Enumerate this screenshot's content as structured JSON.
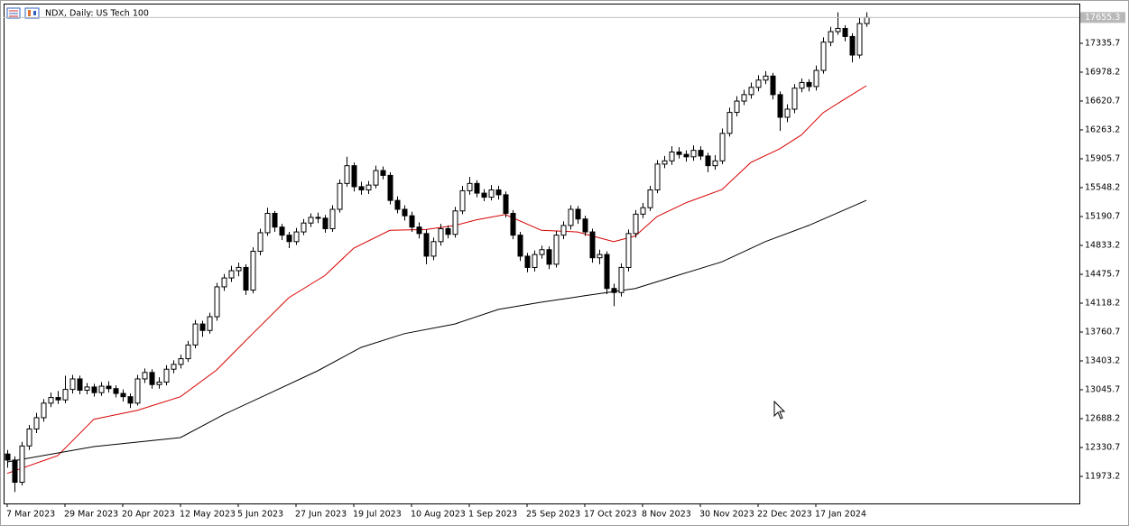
{
  "chart_data": {
    "type": "candlestick",
    "title": "NDX, Daily:  US Tech 100",
    "grid": false,
    "ylim": [
      11638,
      17827
    ],
    "yticks": [
      11973.2,
      12330.7,
      12688.2,
      13045.7,
      13403.2,
      13760.7,
      14118.2,
      14475.7,
      14833.2,
      15190.7,
      15548.2,
      15905.7,
      16263.2,
      16620.7,
      16978.2,
      17335.7
    ],
    "xlim": [
      -0.5,
      148.5
    ],
    "xticks": [
      {
        "value": 0,
        "label": "7 Mar 2023"
      },
      {
        "value": 8,
        "label": "29 Mar 2023"
      },
      {
        "value": 16,
        "label": "20 Apr 2023"
      },
      {
        "value": 24,
        "label": "12 May 2023"
      },
      {
        "value": 32,
        "label": "5 Jun 2023"
      },
      {
        "value": 40,
        "label": "27 Jun 2023"
      },
      {
        "value": 48,
        "label": "19 Jul 2023"
      },
      {
        "value": 56,
        "label": "10 Aug 2023"
      },
      {
        "value": 64,
        "label": "1 Sep 2023"
      },
      {
        "value": 72,
        "label": "25 Sep 2023"
      },
      {
        "value": 80,
        "label": "17 Oct 2023"
      },
      {
        "value": 88,
        "label": "8 Nov 2023"
      },
      {
        "value": 96,
        "label": "30 Nov 2023"
      },
      {
        "value": 104,
        "label": "22 Dec 2023"
      },
      {
        "value": 112,
        "label": "17 Jan 2024"
      }
    ],
    "up_color": "#ffffff",
    "down_color": "#000000",
    "candles": [
      [
        12250,
        12300,
        12080,
        12175
      ],
      [
        12175,
        12220,
        11780,
        11900
      ],
      [
        11900,
        12400,
        11860,
        12350
      ],
      [
        12350,
        12610,
        12300,
        12560
      ],
      [
        12560,
        12760,
        12510,
        12700
      ],
      [
        12700,
        12930,
        12650,
        12880
      ],
      [
        12880,
        13010,
        12830,
        12950
      ],
      [
        12950,
        13030,
        12870,
        12920
      ],
      [
        12920,
        13220,
        12880,
        13050
      ],
      [
        13050,
        13230,
        13000,
        13180
      ],
      [
        13180,
        13220,
        12990,
        13040
      ],
      [
        13040,
        13130,
        12990,
        13080
      ],
      [
        13080,
        13120,
        12960,
        13010
      ],
      [
        13010,
        13140,
        12970,
        13090
      ],
      [
        13090,
        13150,
        13010,
        13060
      ],
      [
        13060,
        13100,
        12950,
        13000
      ],
      [
        13000,
        13050,
        12900,
        12960
      ],
      [
        12960,
        13000,
        12820,
        12880
      ],
      [
        12880,
        13230,
        12850,
        13180
      ],
      [
        13180,
        13310,
        13130,
        13260
      ],
      [
        13260,
        13300,
        13060,
        13110
      ],
      [
        13110,
        13200,
        13060,
        13140
      ],
      [
        13140,
        13350,
        13100,
        13300
      ],
      [
        13300,
        13410,
        13250,
        13360
      ],
      [
        13360,
        13480,
        13310,
        13430
      ],
      [
        13430,
        13650,
        13390,
        13600
      ],
      [
        13600,
        13910,
        13560,
        13860
      ],
      [
        13860,
        13900,
        13700,
        13780
      ],
      [
        13780,
        14000,
        13740,
        13950
      ],
      [
        13950,
        14370,
        13900,
        14320
      ],
      [
        14320,
        14480,
        14270,
        14430
      ],
      [
        14430,
        14580,
        14380,
        14520
      ],
      [
        14520,
        14620,
        14450,
        14560
      ],
      [
        14560,
        14600,
        14220,
        14280
      ],
      [
        14280,
        14810,
        14240,
        14760
      ],
      [
        14760,
        15040,
        14710,
        14990
      ],
      [
        14990,
        15300,
        14950,
        15230
      ],
      [
        15230,
        15260,
        15000,
        15060
      ],
      [
        15060,
        15100,
        14900,
        14960
      ],
      [
        14960,
        15000,
        14800,
        14880
      ],
      [
        14880,
        15050,
        14840,
        15000
      ],
      [
        15000,
        15160,
        14960,
        15110
      ],
      [
        15110,
        15230,
        15060,
        15180
      ],
      [
        15180,
        15240,
        15110,
        15170
      ],
      [
        15170,
        15210,
        14990,
        15040
      ],
      [
        15040,
        15330,
        15000,
        15280
      ],
      [
        15280,
        15650,
        15240,
        15600
      ],
      [
        15600,
        15930,
        15560,
        15820
      ],
      [
        15820,
        15860,
        15500,
        15560
      ],
      [
        15560,
        15620,
        15460,
        15520
      ],
      [
        15520,
        15630,
        15470,
        15580
      ],
      [
        15580,
        15820,
        15540,
        15760
      ],
      [
        15760,
        15810,
        15650,
        15700
      ],
      [
        15700,
        15740,
        15340,
        15390
      ],
      [
        15390,
        15440,
        15230,
        15280
      ],
      [
        15280,
        15330,
        15140,
        15200
      ],
      [
        15200,
        15250,
        15000,
        15060
      ],
      [
        15060,
        15120,
        14920,
        14980
      ],
      [
        14980,
        15030,
        14600,
        14700
      ],
      [
        14700,
        14930,
        14650,
        14880
      ],
      [
        14880,
        15100,
        14830,
        15040
      ],
      [
        15040,
        15080,
        14920,
        14970
      ],
      [
        14970,
        15310,
        14930,
        15260
      ],
      [
        15260,
        15570,
        15220,
        15510
      ],
      [
        15510,
        15680,
        15460,
        15600
      ],
      [
        15600,
        15640,
        15430,
        15480
      ],
      [
        15480,
        15530,
        15380,
        15430
      ],
      [
        15430,
        15580,
        15390,
        15520
      ],
      [
        15520,
        15570,
        15400,
        15460
      ],
      [
        15460,
        15500,
        15180,
        15230
      ],
      [
        15230,
        15270,
        14910,
        14960
      ],
      [
        14960,
        15000,
        14640,
        14700
      ],
      [
        14700,
        14740,
        14500,
        14560
      ],
      [
        14560,
        14770,
        14510,
        14720
      ],
      [
        14720,
        14830,
        14670,
        14780
      ],
      [
        14780,
        14820,
        14540,
        14600
      ],
      [
        14600,
        15010,
        14560,
        14960
      ],
      [
        14960,
        15130,
        14910,
        15080
      ],
      [
        15080,
        15330,
        15030,
        15280
      ],
      [
        15280,
        15320,
        15100,
        15160
      ],
      [
        15160,
        15200,
        14950,
        15000
      ],
      [
        15000,
        15040,
        14620,
        14680
      ],
      [
        14680,
        14780,
        14600,
        14720
      ],
      [
        14720,
        14760,
        14230,
        14300
      ],
      [
        14300,
        14360,
        14080,
        14250
      ],
      [
        14250,
        14610,
        14200,
        14560
      ],
      [
        14560,
        15030,
        14510,
        14980
      ],
      [
        14980,
        15270,
        14930,
        15220
      ],
      [
        15220,
        15360,
        15170,
        15300
      ],
      [
        15300,
        15570,
        15260,
        15520
      ],
      [
        15520,
        15890,
        15480,
        15840
      ],
      [
        15840,
        15940,
        15790,
        15880
      ],
      [
        15880,
        16060,
        15830,
        15990
      ],
      [
        15990,
        16050,
        15910,
        15960
      ],
      [
        15960,
        16010,
        15870,
        15930
      ],
      [
        15930,
        16070,
        15880,
        16010
      ],
      [
        16010,
        16060,
        15890,
        15940
      ],
      [
        15940,
        15980,
        15740,
        15820
      ],
      [
        15820,
        15950,
        15770,
        15880
      ],
      [
        15880,
        16280,
        15840,
        16220
      ],
      [
        16220,
        16540,
        16180,
        16480
      ],
      [
        16480,
        16680,
        16430,
        16620
      ],
      [
        16620,
        16760,
        16570,
        16700
      ],
      [
        16700,
        16850,
        16650,
        16790
      ],
      [
        16790,
        16940,
        16740,
        16880
      ],
      [
        16880,
        16990,
        16830,
        16930
      ],
      [
        16930,
        16970,
        16640,
        16700
      ],
      [
        16700,
        16740,
        16250,
        16420
      ],
      [
        16420,
        16580,
        16360,
        16520
      ],
      [
        16520,
        16830,
        16470,
        16780
      ],
      [
        16780,
        16900,
        16730,
        16850
      ],
      [
        16850,
        16890,
        16740,
        16800
      ],
      [
        16800,
        17060,
        16750,
        17000
      ],
      [
        17000,
        17410,
        16960,
        17350
      ],
      [
        17350,
        17540,
        17300,
        17480
      ],
      [
        17480,
        17720,
        17440,
        17520
      ],
      [
        17520,
        17560,
        17360,
        17420
      ],
      [
        17420,
        17460,
        17100,
        17190
      ],
      [
        17190,
        17660,
        17150,
        17580
      ],
      [
        17580,
        17720,
        17540,
        17655.3
      ]
    ],
    "series": [
      {
        "color": "#d80000",
        "x": [
          0,
          7,
          12,
          18,
          24,
          29,
          34,
          39,
          44,
          48,
          53,
          58,
          62,
          65,
          69,
          74,
          79,
          84,
          87,
          90,
          94,
          99,
          103,
          107,
          110,
          113,
          116,
          119
        ],
        "values": [
          12010,
          12230,
          12680,
          12790,
          12960,
          13290,
          13740,
          14185,
          14460,
          14800,
          15020,
          15030,
          15080,
          15150,
          15215,
          15020,
          15000,
          14880,
          14950,
          15190,
          15360,
          15525,
          15860,
          16030,
          16200,
          16475,
          16645,
          16810
        ]
      },
      {
        "color": "#000000",
        "x": [
          0,
          12,
          24,
          30,
          37,
          43,
          49,
          55,
          62,
          68,
          74,
          80,
          87,
          93,
          99,
          105,
          111,
          119
        ],
        "values": [
          12152,
          12342,
          12453,
          12740,
          13030,
          13280,
          13570,
          13740,
          13860,
          14040,
          14130,
          14210,
          14300,
          14465,
          14630,
          14880,
          15080,
          15390
        ]
      }
    ]
  }
}
